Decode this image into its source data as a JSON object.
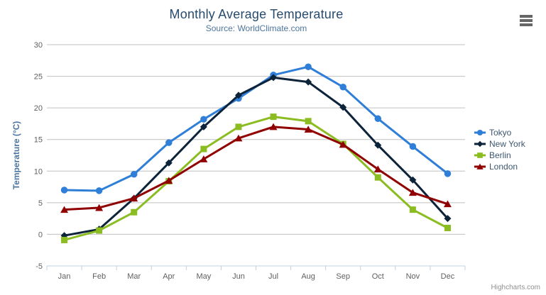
{
  "chart": {
    "title": "Monthly Average Temperature",
    "subtitle": "Source: WorldClimate.com",
    "y_axis_title": "Temperature (°C)",
    "credits": "Highcharts.com"
  },
  "colors": {
    "title": "#274b6d",
    "subtitle": "#4d759e",
    "axis_title": "#4d759e",
    "axis_labels": "#606060",
    "grid_line": "#c0c0c0",
    "axis_line": "#c0d0e0",
    "legend_text": "#3e576f",
    "credits": "#909090",
    "context_button": "#666666",
    "background": "#ffffff"
  },
  "chart_data": {
    "type": "line",
    "title": "Monthly Average Temperature",
    "subtitle": "Source: WorldClimate.com",
    "xlabel": "",
    "ylabel": "Temperature (°C)",
    "ylim": [
      -5,
      30
    ],
    "y_ticks": [
      -5,
      0,
      5,
      10,
      15,
      20,
      25,
      30
    ],
    "categories": [
      "Jan",
      "Feb",
      "Mar",
      "Apr",
      "May",
      "Jun",
      "Jul",
      "Aug",
      "Sep",
      "Oct",
      "Nov",
      "Dec"
    ],
    "grid": true,
    "legend_position": "right",
    "series": [
      {
        "name": "Tokyo",
        "color": "#2f7ed8",
        "marker": "circle",
        "values": [
          7.0,
          6.9,
          9.5,
          14.5,
          18.2,
          21.5,
          25.2,
          26.5,
          23.3,
          18.3,
          13.9,
          9.6
        ]
      },
      {
        "name": "New York",
        "color": "#0d233a",
        "marker": "diamond",
        "values": [
          -0.2,
          0.8,
          5.7,
          11.3,
          17.0,
          22.0,
          24.8,
          24.1,
          20.1,
          14.1,
          8.6,
          2.5
        ]
      },
      {
        "name": "Berlin",
        "color": "#8bbc21",
        "marker": "square",
        "values": [
          -0.9,
          0.6,
          3.5,
          8.4,
          13.5,
          17.0,
          18.6,
          17.9,
          14.3,
          9.0,
          3.9,
          1.0
        ]
      },
      {
        "name": "London",
        "color": "#910000",
        "marker": "triangle",
        "values": [
          3.9,
          4.2,
          5.7,
          8.5,
          11.9,
          15.2,
          17.0,
          16.6,
          14.2,
          10.3,
          6.6,
          4.8
        ]
      }
    ]
  }
}
